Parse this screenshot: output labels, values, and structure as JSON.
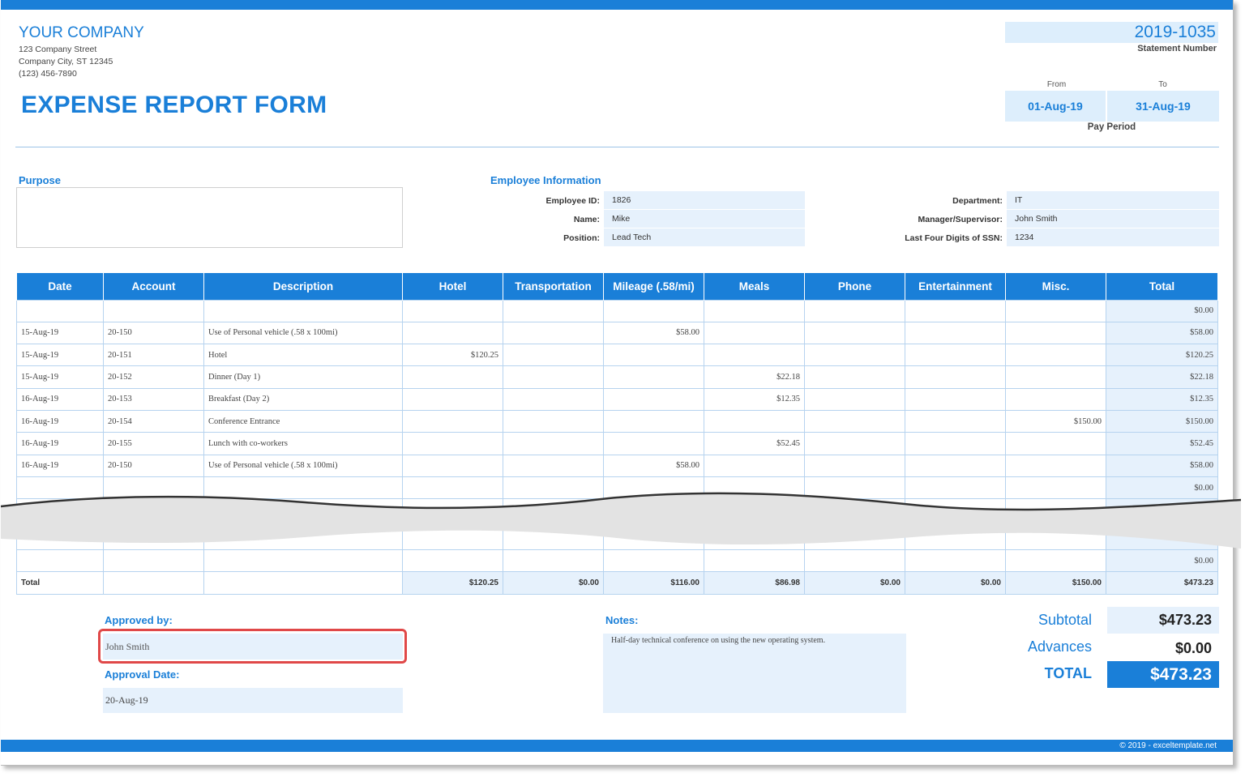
{
  "header": {
    "company": "YOUR COMPANY",
    "address_line1": "123 Company Street",
    "address_line2": "Company City, ST 12345",
    "phone": "(123) 456-7890",
    "form_title": "EXPENSE REPORT FORM",
    "statement_number": "2019-1035",
    "statement_label": "Statement Number",
    "from_label": "From",
    "to_label": "To",
    "from_date": "01-Aug-19",
    "to_date": "31-Aug-19",
    "pay_period_label": "Pay Period"
  },
  "purpose": {
    "title": "Purpose",
    "value": ""
  },
  "employee": {
    "title": "Employee Information",
    "id_label": "Employee ID:",
    "id": "1826",
    "name_label": "Name:",
    "name": "Mike",
    "position_label": "Position:",
    "position": "Lead Tech",
    "department_label": "Department:",
    "department": "IT",
    "manager_label": "Manager/Supervisor:",
    "manager": "John Smith",
    "ssn_label": "Last Four Digits of SSN:",
    "ssn": "1234"
  },
  "table": {
    "columns": [
      "Date",
      "Account",
      "Description",
      "Hotel",
      "Transportation",
      "Mileage (.58/mi)",
      "Meals",
      "Phone",
      "Entertainment",
      "Misc.",
      "Total"
    ],
    "rows": [
      [
        "",
        "",
        "",
        "",
        "",
        "",
        "",
        "",
        "",
        "",
        "$0.00"
      ],
      [
        "15-Aug-19",
        "20-150",
        "Use of Personal vehicle (.58 x 100mi)",
        "",
        "",
        "$58.00",
        "",
        "",
        "",
        "",
        "$58.00"
      ],
      [
        "15-Aug-19",
        "20-151",
        "Hotel",
        "$120.25",
        "",
        "",
        "",
        "",
        "",
        "",
        "$120.25"
      ],
      [
        "15-Aug-19",
        "20-152",
        "Dinner (Day 1)",
        "",
        "",
        "",
        "$22.18",
        "",
        "",
        "",
        "$22.18"
      ],
      [
        "16-Aug-19",
        "20-153",
        "Breakfast (Day 2)",
        "",
        "",
        "",
        "$12.35",
        "",
        "",
        "",
        "$12.35"
      ],
      [
        "16-Aug-19",
        "20-154",
        "Conference Entrance",
        "",
        "",
        "",
        "",
        "",
        "",
        "$150.00",
        "$150.00"
      ],
      [
        "16-Aug-19",
        "20-155",
        "Lunch with co-workers",
        "",
        "",
        "",
        "$52.45",
        "",
        "",
        "",
        "$52.45"
      ],
      [
        "16-Aug-19",
        "20-150",
        "Use of Personal vehicle (.58 x 100mi)",
        "",
        "",
        "$58.00",
        "",
        "",
        "",
        "",
        "$58.00"
      ],
      [
        "",
        "",
        "",
        "",
        "",
        "",
        "",
        "",
        "",
        "",
        "$0.00"
      ]
    ],
    "last_row": [
      "",
      "",
      "",
      "",
      "",
      "",
      "",
      "",
      "",
      "",
      "$0.00"
    ],
    "totals": [
      "Total",
      "",
      "",
      "$120.25",
      "$0.00",
      "$116.00",
      "$86.98",
      "$0.00",
      "$0.00",
      "$150.00",
      "$473.23"
    ]
  },
  "approval": {
    "approved_by_label": "Approved by:",
    "approved_by": "John Smith",
    "approval_date_label": "Approval Date:",
    "approval_date": "20-Aug-19"
  },
  "notes": {
    "label": "Notes:",
    "text": "Half-day technical conference on using the new operating system."
  },
  "summary": {
    "subtotal_label": "Subtotal",
    "subtotal": "$473.23",
    "advances_label": "Advances",
    "advances": "$0.00",
    "total_label": "TOTAL",
    "total": "$473.23"
  },
  "footer": {
    "copyright": "© 2019 - exceltemplate.net"
  },
  "colors": {
    "accent": "#1a7fd8",
    "light_fill": "#e6f1fc",
    "highlight": "#e04848"
  }
}
